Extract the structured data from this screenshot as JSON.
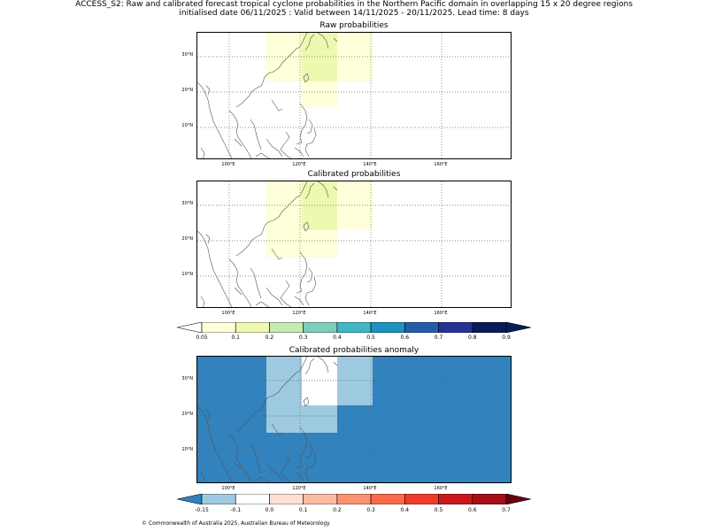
{
  "header": {
    "line1": "ACCESS_S2: Raw and calibrated forecast tropical cyclone probabilities in the Northern Pacific domain in overlapping 15 x 20 degree regions",
    "line2": "initialised date 06/11/2025 :  Valid between 14/11/2025 - 20/11/2025. Lead time: 8 days"
  },
  "panels": [
    {
      "title": "Raw probabilities",
      "key": "raw"
    },
    {
      "title": "Calibrated probabilities",
      "key": "cal"
    },
    {
      "title": "Calibrated probabilities anomaly",
      "key": "anom"
    }
  ],
  "lat_labels": [
    "30°N",
    "20°N",
    "10°N"
  ],
  "lon_labels": [
    "100°E",
    "120°E",
    "140°E",
    "160°E"
  ],
  "prob_colorbar": {
    "ticks": [
      "0.05",
      "0.1",
      "0.2",
      "0.3",
      "0.4",
      "0.5",
      "0.6",
      "0.7",
      "0.8",
      "0.9"
    ],
    "colors": [
      "#ffffd9",
      "#edf8b1",
      "#c7e9b4",
      "#7fcdbb",
      "#41b6c4",
      "#1d91c0",
      "#225ea8",
      "#253494",
      "#081d58"
    ],
    "under": "#ffffff",
    "over": "#081d58"
  },
  "anom_colorbar": {
    "ticks": [
      "-0.15",
      "-0.1",
      "0.0",
      "0.1",
      "0.2",
      "0.3",
      "0.4",
      "0.5",
      "0.6",
      "0.7"
    ],
    "colors": [
      "#9ecae1",
      "#ffffff",
      "#fee0d2",
      "#fcbba1",
      "#fc9272",
      "#fb6a4a",
      "#ef3b2c",
      "#cb181d",
      "#a50f15"
    ],
    "under": "#3182bd",
    "over": "#67000d"
  },
  "footer": "© Commonwealth of Australia 2025, Australian Bureau of Meteorology"
}
